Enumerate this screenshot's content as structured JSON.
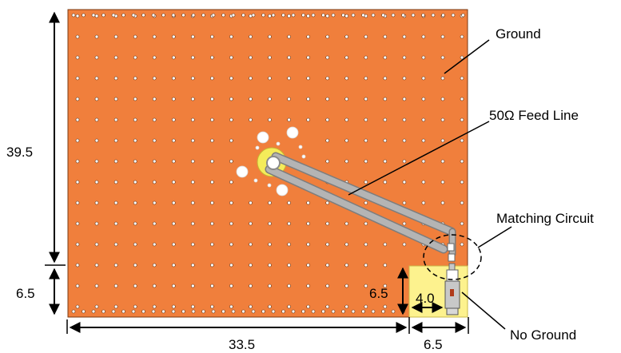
{
  "labels": {
    "ground": "Ground",
    "feed_line": "50Ω Feed Line",
    "matching_circuit": "Matching Circuit",
    "no_ground": "No Ground"
  },
  "dimensions": {
    "height_upper": "39.5",
    "height_lower": "6.5",
    "width_main": "33.5",
    "width_no_ground": "6.5",
    "no_ground_height": "6.5",
    "no_ground_width": "4.0"
  },
  "colors": {
    "ground_plane": "#f07f3c",
    "no_ground_region": "#fdf28e",
    "feed_line": "#b4b4b4",
    "via": "#ffffff",
    "ring": "#f4ec5a"
  },
  "icons": {
    "dimension_arrow": "double-arrow-icon",
    "connector": "sma-connector-icon"
  }
}
